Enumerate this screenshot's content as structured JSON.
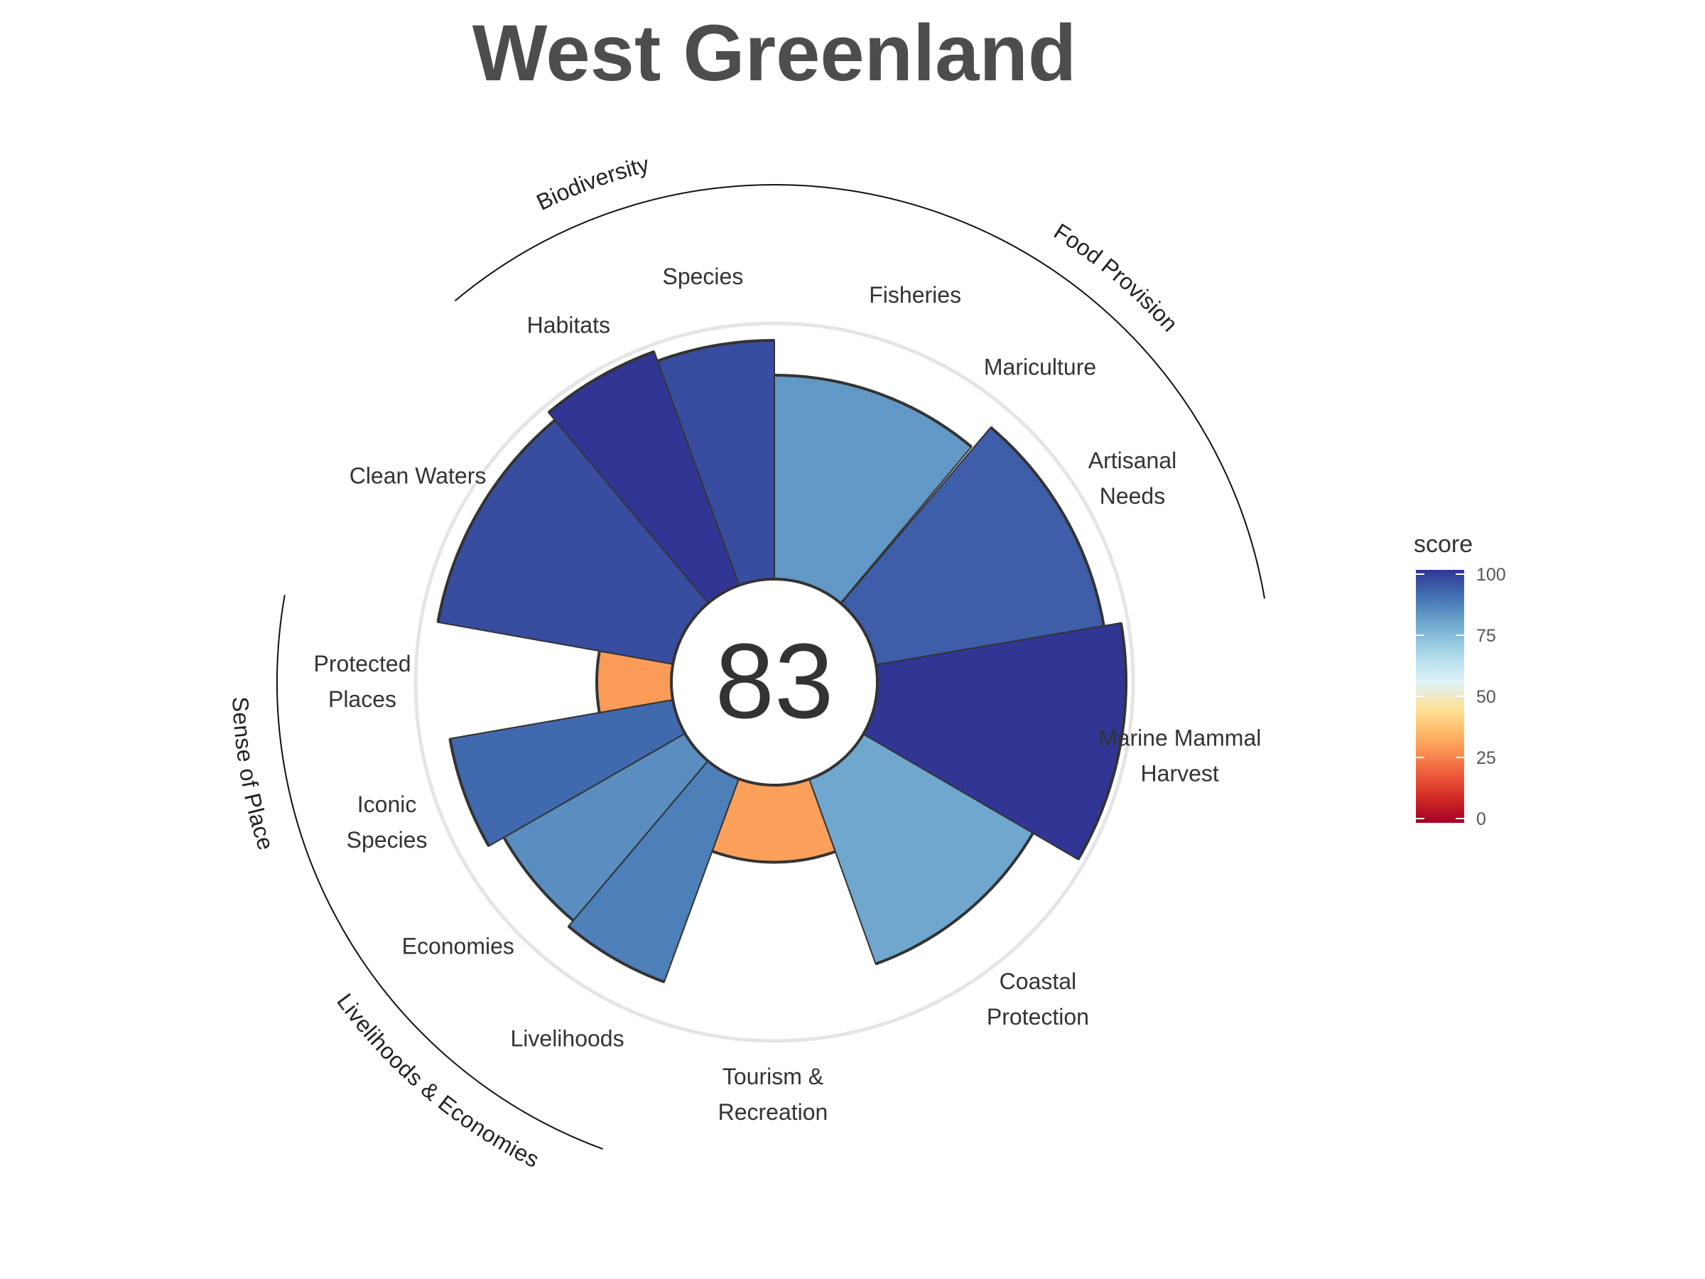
{
  "title": "West Greenland",
  "chart_data": {
    "type": "polar-bar",
    "title": "West Greenland",
    "center_score": "83",
    "score_range": [
      0,
      100
    ],
    "goals": [
      {
        "name": "Fisheries",
        "label_lines": [
          "Fisheries"
        ],
        "score": 82,
        "weight": 1.0
      },
      {
        "name": "Mariculture",
        "label_lines": [
          "Mariculture"
        ],
        "score": null,
        "weight": 0.01
      },
      {
        "name": "Artisanal Needs",
        "label_lines": [
          "Artisanal",
          "Needs"
        ],
        "score": 93,
        "weight": 1.0
      },
      {
        "name": "Marine Mammal Harvest",
        "label_lines": [
          "Marine Mammal",
          "Harvest"
        ],
        "score": 100,
        "weight": 1.0
      },
      {
        "name": "Coastal Protection",
        "label_lines": [
          "Coastal",
          "Protection"
        ],
        "score": 79,
        "weight": 1.0
      },
      {
        "name": "Tourism & Recreation",
        "label_lines": [
          "Tourism &",
          "Recreation"
        ],
        "score": 31,
        "weight": 1.0
      },
      {
        "name": "Livelihoods",
        "label_lines": [
          "Livelihoods"
        ],
        "score": 87,
        "weight": 0.5
      },
      {
        "name": "Economies",
        "label_lines": [
          "Economies"
        ],
        "score": 84,
        "weight": 0.5
      },
      {
        "name": "Iconic Species",
        "label_lines": [
          "Iconic",
          "Species"
        ],
        "score": 91,
        "weight": 0.5
      },
      {
        "name": "Protected Places",
        "label_lines": [
          "Protected",
          "Places"
        ],
        "score": 30,
        "weight": 0.5
      },
      {
        "name": "Clean Waters",
        "label_lines": [
          "Clean Waters"
        ],
        "score": 96,
        "weight": 1.0
      },
      {
        "name": "Habitats",
        "label_lines": [
          "Habitats"
        ],
        "score": 100,
        "weight": 0.5
      },
      {
        "name": "Species",
        "label_lines": [
          "Species"
        ],
        "score": 96,
        "weight": 0.5
      }
    ],
    "groups": [
      {
        "name": "Food Provision",
        "goals": [
          "Fisheries",
          "Mariculture",
          "Artisanal Needs"
        ]
      },
      {
        "name": "Biodiversity",
        "goals": [
          "Habitats",
          "Species"
        ]
      },
      {
        "name": "Livelihoods & Economies",
        "goals": [
          "Livelihoods",
          "Economies"
        ]
      },
      {
        "name": "Sense of Place",
        "goals": [
          "Iconic Species",
          "Protected Places"
        ]
      }
    ],
    "legend": {
      "title": "score",
      "ticks": [
        "100",
        "75",
        "50",
        "25",
        "0"
      ],
      "colors": [
        "#a50026",
        "#d73027",
        "#f46d43",
        "#fdae61",
        "#fee090",
        "#e0f3f8",
        "#abd9e9",
        "#74add1",
        "#4575b4",
        "#313695"
      ],
      "placement": "right"
    }
  }
}
